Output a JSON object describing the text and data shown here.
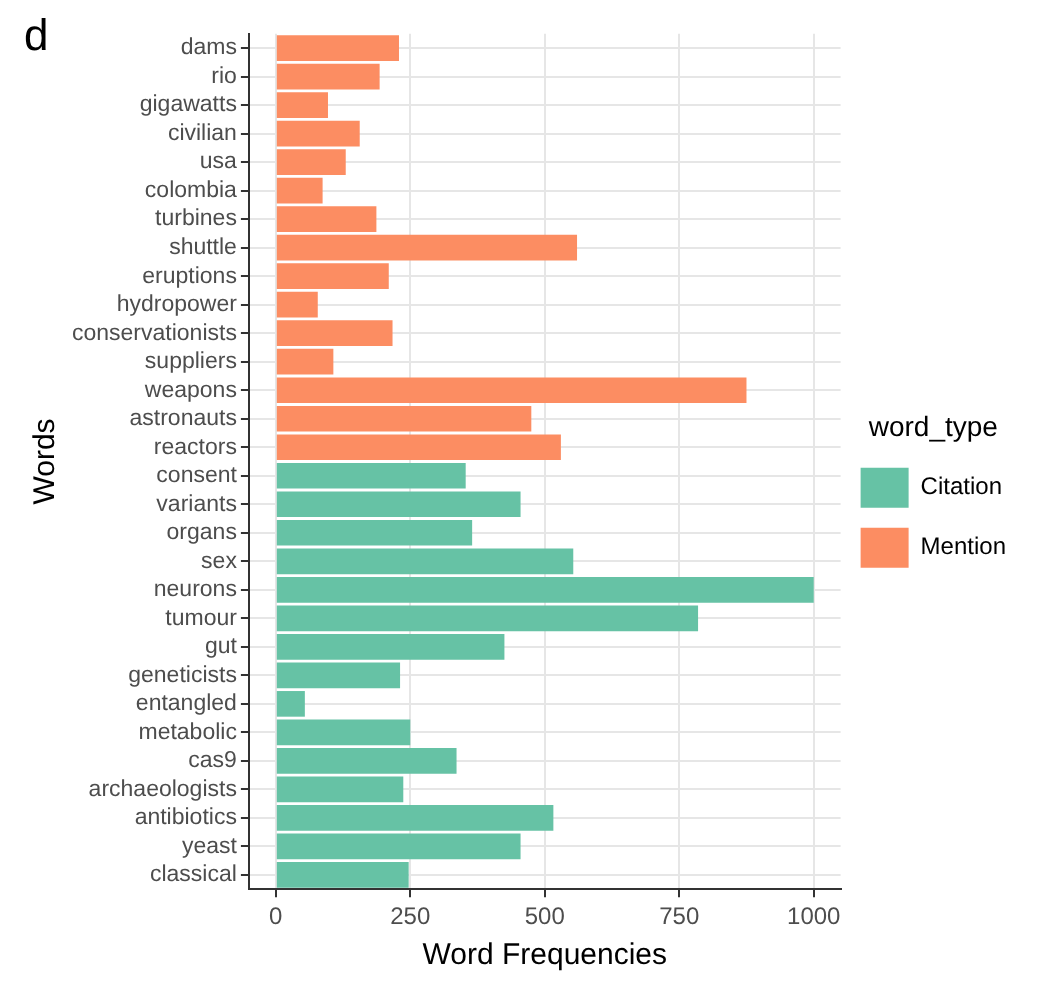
{
  "chart_data": {
    "type": "bar",
    "orientation": "horizontal",
    "xlabel": "Word Frequencies",
    "ylabel": "Words",
    "legend_title": "word_type",
    "legend": "right",
    "grid": true,
    "annotations": [
      "d"
    ],
    "categories": [
      "dams",
      "rio",
      "gigawatts",
      "civilian",
      "usa",
      "colombia",
      "turbines",
      "shuttle",
      "eruptions",
      "hydropower",
      "conservationists",
      "suppliers",
      "weapons",
      "astronauts",
      "reactors",
      "consent",
      "variants",
      "organs",
      "sex",
      "neurons",
      "tumour",
      "gut",
      "geneticists",
      "entangled",
      "metabolic",
      "cas9",
      "archaeologists",
      "antibiotics",
      "yeast",
      "classical"
    ],
    "xlim": [
      -50,
      1050
    ],
    "xticks": [
      0,
      250,
      500,
      750,
      1000
    ],
    "series": [
      {
        "name": "Citation",
        "color": "#66c2a5",
        "values": [
          null,
          null,
          null,
          null,
          null,
          null,
          null,
          null,
          null,
          null,
          null,
          null,
          null,
          null,
          null,
          353,
          455,
          365,
          553,
          1000,
          785,
          425,
          231,
          54,
          250,
          336,
          237,
          516,
          455,
          247
        ]
      },
      {
        "name": "Mention",
        "color": "#fc8d62",
        "values": [
          229,
          193,
          97,
          156,
          130,
          87,
          187,
          560,
          210,
          78,
          217,
          107,
          875,
          475,
          530,
          null,
          null,
          null,
          null,
          null,
          null,
          null,
          null,
          null,
          null,
          null,
          null,
          null,
          null,
          null
        ]
      }
    ]
  }
}
